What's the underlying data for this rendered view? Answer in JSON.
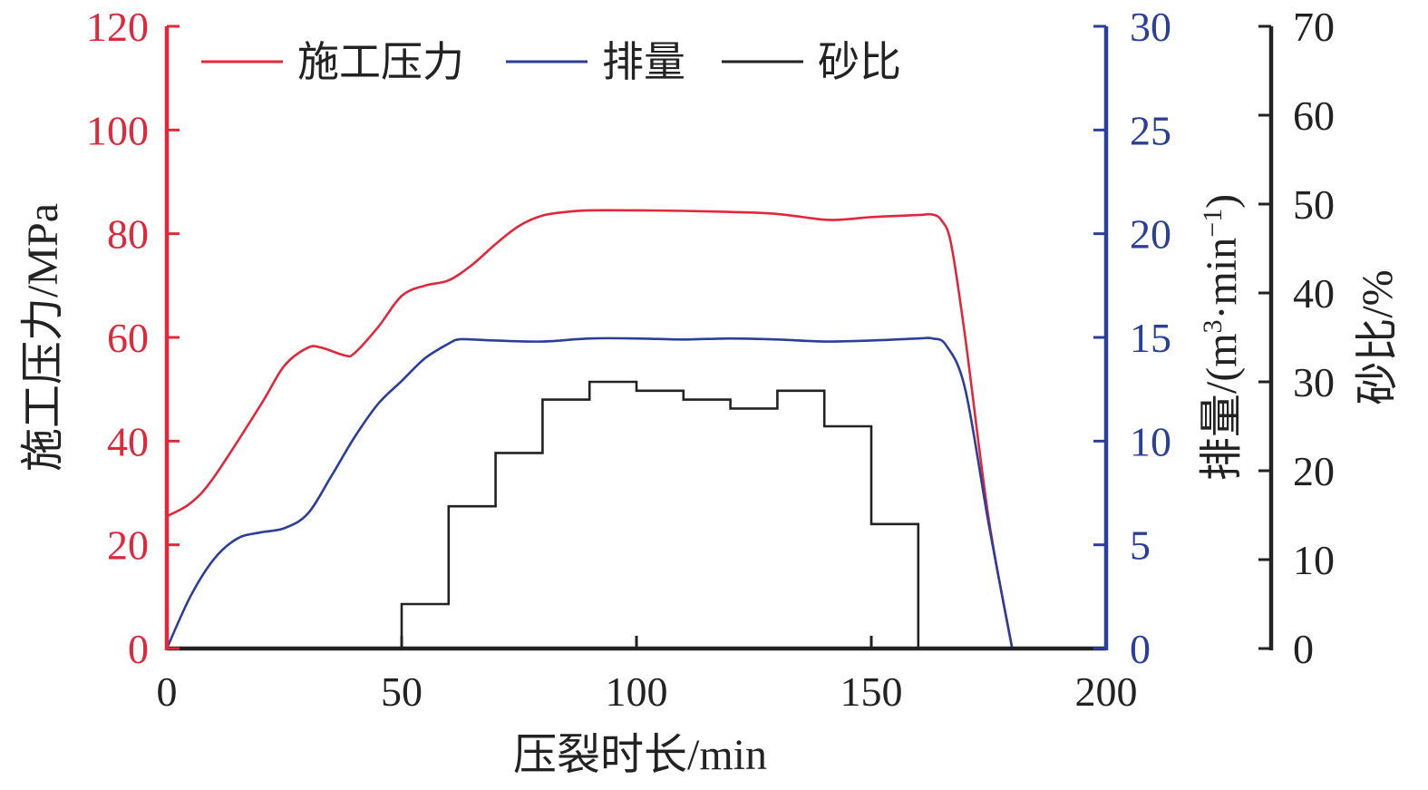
{
  "chart_data": {
    "type": "line",
    "xlabel": "压裂时长/min",
    "xlim": [
      0,
      200
    ],
    "xticks": [
      0,
      50,
      100,
      150,
      200
    ],
    "axes": {
      "left": {
        "label": "施工压力/MPa",
        "lim": [
          0,
          120
        ],
        "ticks": [
          0,
          20,
          40,
          60,
          80,
          100,
          120
        ],
        "color": "#e0283c"
      },
      "right1": {
        "label": "排量/(m",
        "sup1": "3",
        "mid": "·min",
        "sup2": "−1",
        "end": ")",
        "lim": [
          0,
          30
        ],
        "ticks": [
          0,
          5,
          10,
          15,
          20,
          25,
          30
        ],
        "color": "#2b3e98"
      },
      "right2": {
        "label": "砂比/%",
        "lim": [
          0,
          70
        ],
        "ticks": [
          0,
          10,
          20,
          30,
          40,
          50,
          60,
          70
        ],
        "color": "#222222"
      }
    },
    "legend_position": "top-left",
    "series": [
      {
        "name": "施工压力",
        "axis": "left",
        "color": "#e0283c",
        "style": "smooth",
        "x": [
          0,
          5,
          10,
          20,
          25,
          30,
          33,
          38,
          40,
          45,
          50,
          55,
          60,
          65,
          70,
          75,
          80,
          85,
          90,
          100,
          110,
          120,
          130,
          140,
          145,
          150,
          160,
          163,
          165,
          167,
          170,
          175,
          180
        ],
        "y": [
          25.5,
          28,
          33,
          47,
          54.5,
          58,
          58,
          56.5,
          57,
          62,
          68,
          70,
          71,
          74,
          78,
          81.5,
          83.5,
          84.2,
          84.5,
          84.5,
          84.4,
          84.2,
          83.8,
          82.7,
          82.8,
          83.2,
          83.6,
          83.7,
          82.5,
          78,
          60,
          25,
          0
        ]
      },
      {
        "name": "排量",
        "axis": "right1",
        "color": "#2b3e98",
        "style": "smooth",
        "x": [
          0,
          5,
          10,
          15,
          20,
          25,
          30,
          35,
          40,
          45,
          50,
          55,
          60,
          62,
          65,
          70,
          80,
          90,
          100,
          110,
          120,
          130,
          140,
          150,
          160,
          163,
          166,
          170,
          175,
          180
        ],
        "y": [
          0,
          2.5,
          4.3,
          5.3,
          5.6,
          5.8,
          6.5,
          8.3,
          10.2,
          11.8,
          12.9,
          14,
          14.7,
          14.9,
          14.9,
          14.85,
          14.8,
          14.95,
          14.95,
          14.9,
          14.95,
          14.9,
          14.8,
          14.85,
          14.95,
          14.95,
          14.6,
          12.5,
          6,
          0
        ]
      },
      {
        "name": "砂比",
        "axis": "right2",
        "color": "#222222",
        "style": "step",
        "segments": [
          {
            "x0": 50,
            "x1": 60,
            "value": 5
          },
          {
            "x0": 60,
            "x1": 70,
            "value": 16
          },
          {
            "x0": 70,
            "x1": 80,
            "value": 22
          },
          {
            "x0": 80,
            "x1": 90,
            "value": 28
          },
          {
            "x0": 90,
            "x1": 100,
            "value": 30
          },
          {
            "x0": 100,
            "x1": 110,
            "value": 29
          },
          {
            "x0": 110,
            "x1": 120,
            "value": 28
          },
          {
            "x0": 120,
            "x1": 130,
            "value": 27
          },
          {
            "x0": 130,
            "x1": 140,
            "value": 29
          },
          {
            "x0": 140,
            "x1": 150,
            "value": 25
          },
          {
            "x0": 150,
            "x1": 160,
            "value": 14
          }
        ]
      }
    ]
  }
}
